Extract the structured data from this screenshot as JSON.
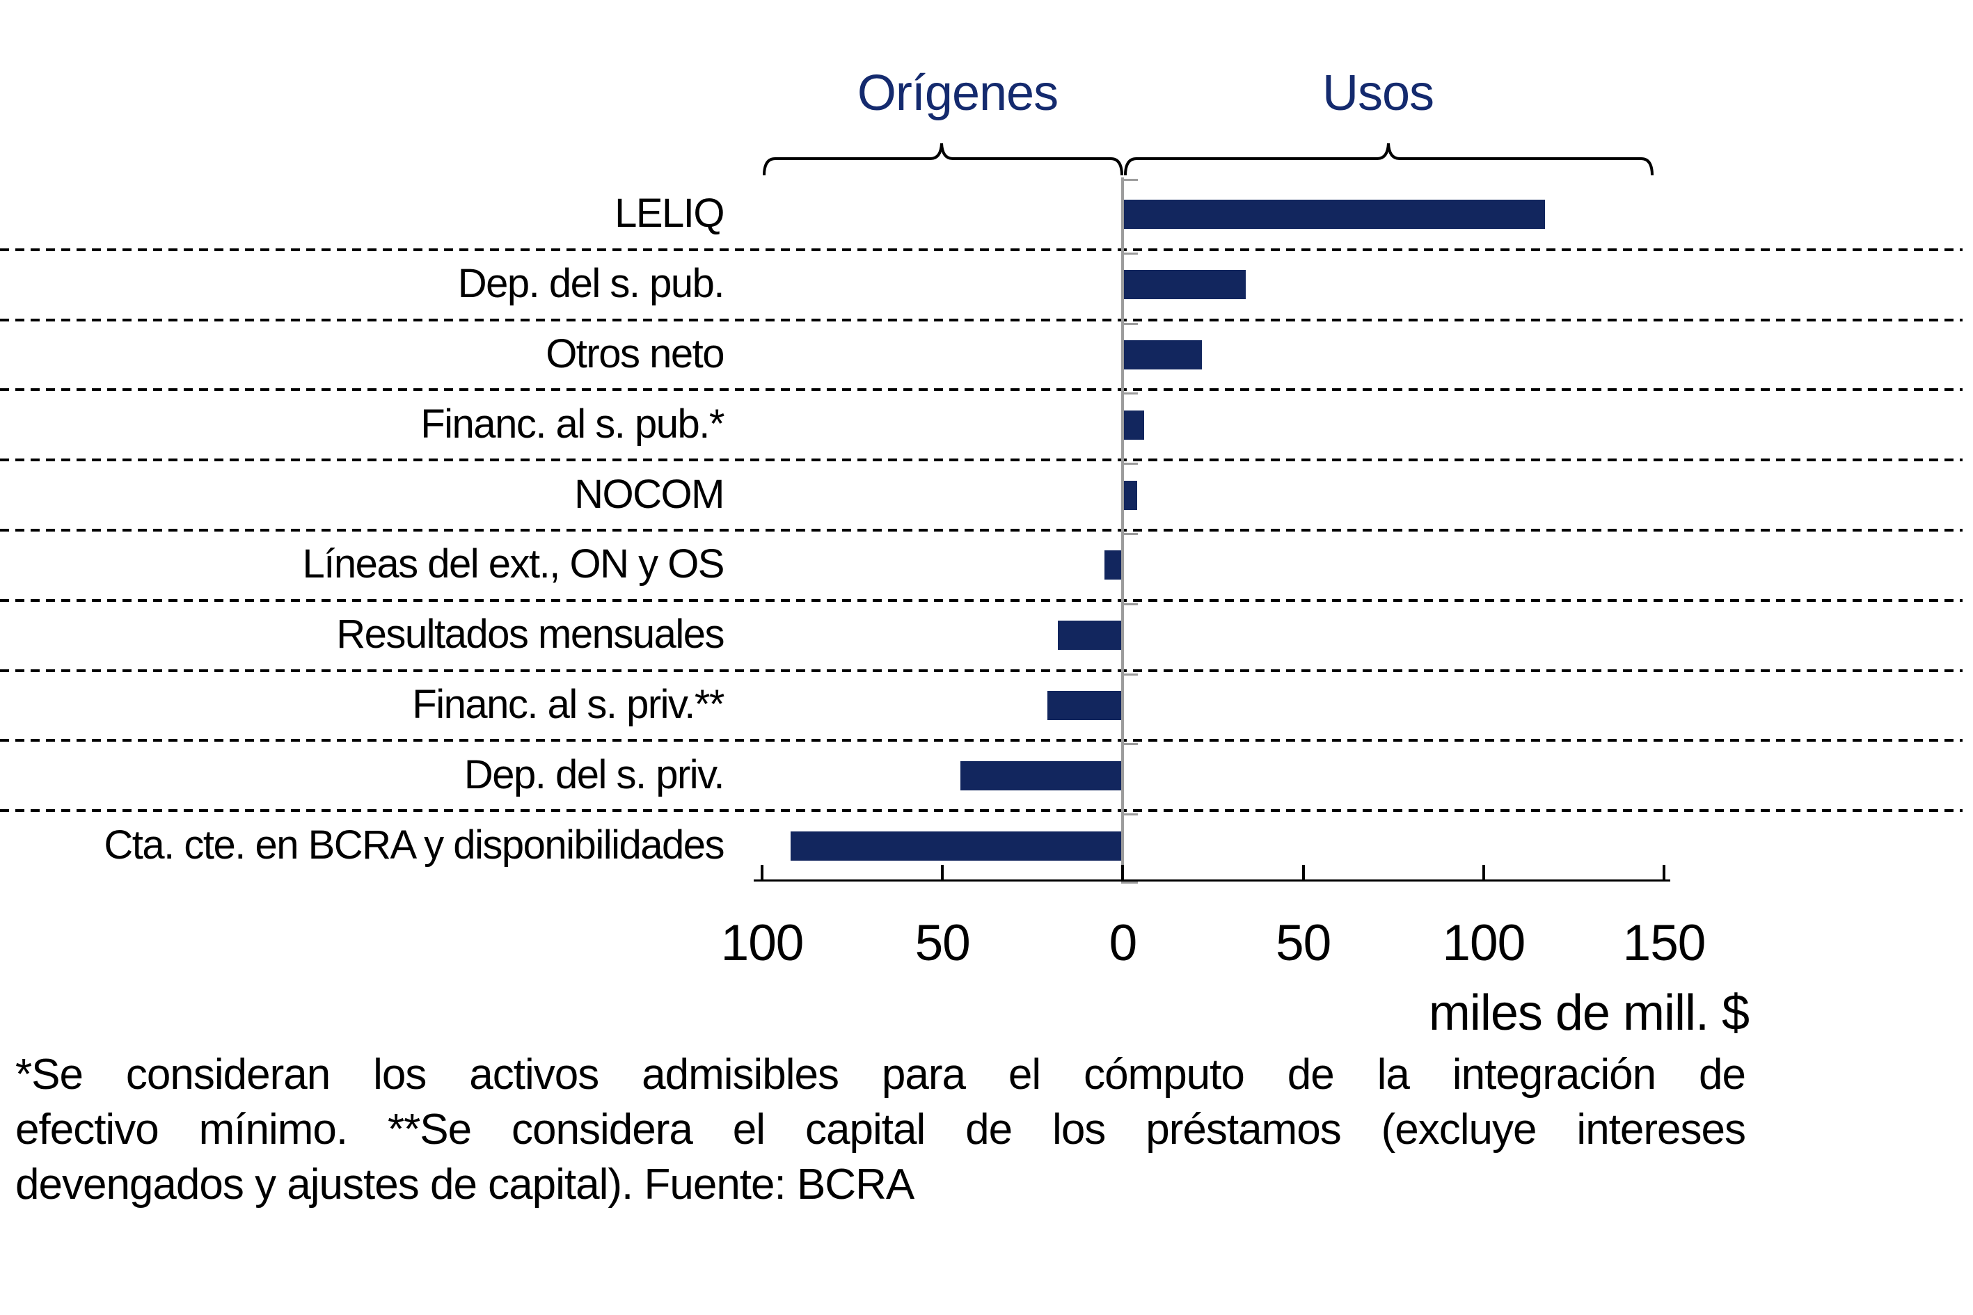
{
  "chart_data": {
    "type": "bar",
    "orientation": "horizontal",
    "negative_side_label": "Orígenes",
    "positive_side_label": "Usos",
    "xlabel": "miles de mill. $",
    "xlim": [
      -100,
      150
    ],
    "x_ticks": [
      -100,
      -50,
      0,
      50,
      100,
      150
    ],
    "x_tick_labels": [
      "100",
      "50",
      "0",
      "50",
      "100",
      "150"
    ],
    "categories": [
      "LELIQ",
      "Dep. del s. pub.",
      "Otros neto",
      "Financ. al s. pub.*",
      "NOCOM",
      "Líneas del ext., ON y OS",
      "Resultados mensuales",
      "Financ. al s. priv.**",
      "Dep. del s. priv.",
      "Cta. cte. en BCRA y disponibilidades"
    ],
    "values": [
      117,
      34,
      22,
      6,
      4,
      -5,
      -18,
      -21,
      -45,
      -92
    ],
    "grid": "dashed horizontal row separators",
    "legend": "none"
  },
  "footnote": {
    "lines": [
      "*Se consideran los activos admisibles para el cómputo de la integración de",
      "efectivo mínimo. **Se considera el capital de los préstamos (excluye intereses",
      "devengados y ajustes de capital). Fuente: BCRA"
    ],
    "full_text": "*Se consideran los activos admisibles para el cómputo de la integración de efectivo mínimo. **Se considera el capital de los préstamos (excluye intereses devengados y ajustes de capital). Fuente: BCRA"
  },
  "colors": {
    "bar": "#12265e",
    "title_text": "#142a6e",
    "axis": "#000000",
    "zero_axis": "#9c9c9c",
    "divider": "#000000",
    "text": "#000000"
  }
}
